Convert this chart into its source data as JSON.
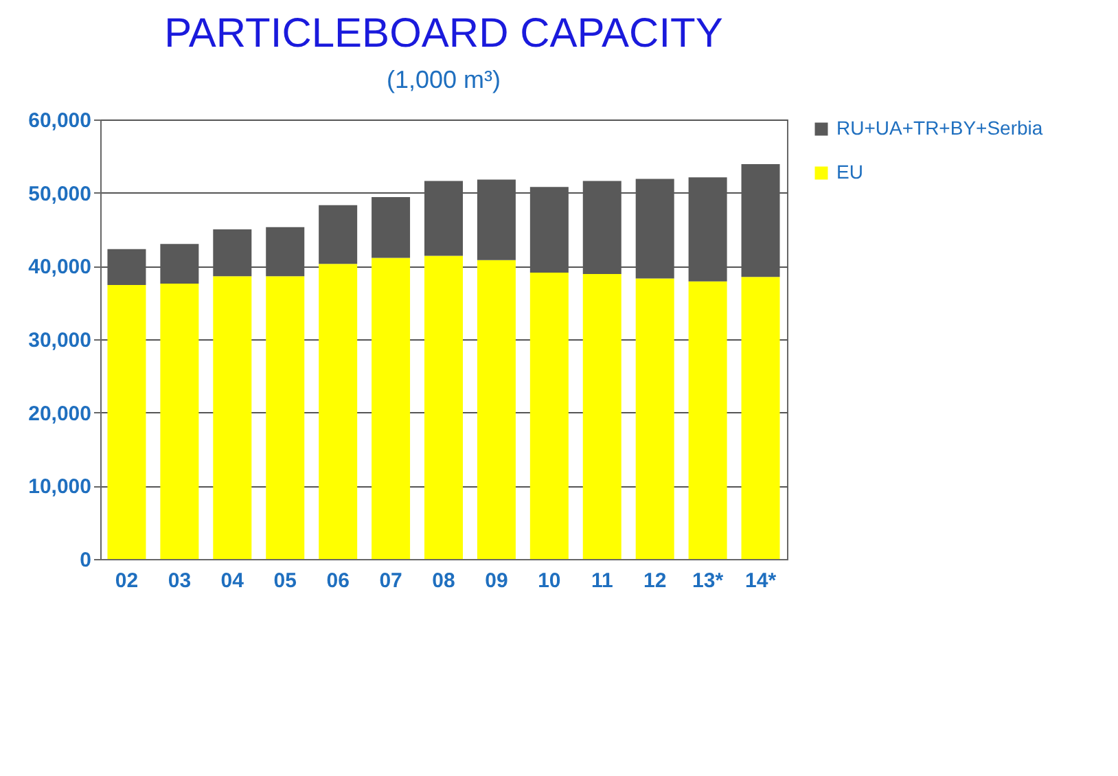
{
  "chart_data": {
    "type": "bar",
    "title": "PARTICLEBOARD CAPACITY",
    "ylabel": "(1,000 m³)",
    "categories": [
      "02",
      "03",
      "04",
      "05",
      "06",
      "07",
      "08",
      "09",
      "10",
      "11",
      "12",
      "13*",
      "14*"
    ],
    "stacked": true,
    "series": [
      {
        "name": "EU",
        "color": "#ffff00",
        "values": [
          37400,
          37600,
          38600,
          38600,
          40300,
          41100,
          41400,
          40800,
          39100,
          38900,
          38300,
          37900,
          38500
        ]
      },
      {
        "name": "RU+UA+TR+BY+Serbia",
        "color": "#595959",
        "values": [
          4900,
          5400,
          6400,
          6700,
          8000,
          8300,
          10200,
          11000,
          11700,
          12700,
          13600,
          14200,
          15400
        ]
      }
    ],
    "ylim": [
      0,
      60000
    ],
    "yticks": [
      0,
      {
        "value": 10000,
        "label": "10,000"
      },
      {
        "value": 20000,
        "label": "20,000"
      },
      {
        "value": 30000,
        "label": "30,000"
      },
      {
        "value": 40000,
        "label": "40,000"
      },
      {
        "value": 50000,
        "label": "50,000"
      },
      {
        "value": 60000,
        "label": "60,000"
      }
    ],
    "grid": "y",
    "legend": "top right"
  }
}
